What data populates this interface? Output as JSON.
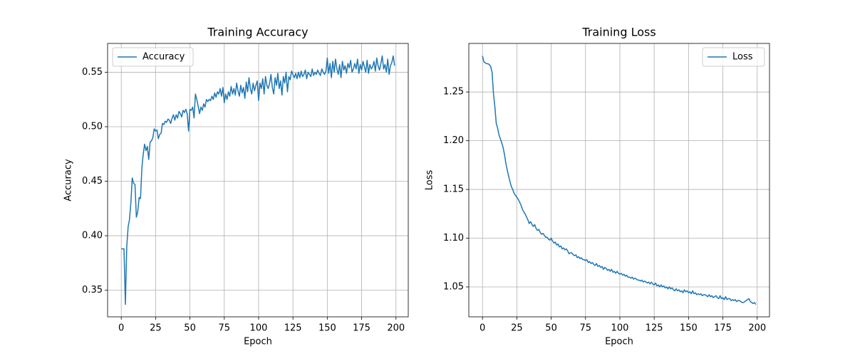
{
  "chart_data": [
    {
      "type": "line",
      "title": "Training Accuracy",
      "xlabel": "Epoch",
      "ylabel": "Accuracy",
      "x": [
        0,
        1,
        2,
        3,
        4,
        5,
        6,
        7,
        8,
        9,
        10,
        11,
        12,
        13,
        14,
        15,
        16,
        17,
        18,
        19,
        20,
        21,
        22,
        23,
        24,
        25,
        26,
        27,
        28,
        29,
        30,
        31,
        32,
        33,
        34,
        35,
        36,
        37,
        38,
        39,
        40,
        41,
        42,
        43,
        44,
        45,
        46,
        47,
        48,
        49,
        50,
        51,
        52,
        53,
        54,
        55,
        56,
        57,
        58,
        59,
        60,
        61,
        62,
        63,
        64,
        65,
        66,
        67,
        68,
        69,
        70,
        71,
        72,
        73,
        74,
        75,
        76,
        77,
        78,
        79,
        80,
        81,
        82,
        83,
        84,
        85,
        86,
        87,
        88,
        89,
        90,
        91,
        92,
        93,
        94,
        95,
        96,
        97,
        98,
        99,
        100,
        101,
        102,
        103,
        104,
        105,
        106,
        107,
        108,
        109,
        110,
        111,
        112,
        113,
        114,
        115,
        116,
        117,
        118,
        119,
        120,
        121,
        122,
        123,
        124,
        125,
        126,
        127,
        128,
        129,
        130,
        131,
        132,
        133,
        134,
        135,
        136,
        137,
        138,
        139,
        140,
        141,
        142,
        143,
        144,
        145,
        146,
        147,
        148,
        149,
        150,
        151,
        152,
        153,
        154,
        155,
        156,
        157,
        158,
        159,
        160,
        161,
        162,
        163,
        164,
        165,
        166,
        167,
        168,
        169,
        170,
        171,
        172,
        173,
        174,
        175,
        176,
        177,
        178,
        179,
        180,
        181,
        182,
        183,
        184,
        185,
        186,
        187,
        188,
        189,
        190,
        191,
        192,
        193,
        194,
        195,
        196,
        197,
        198,
        199
      ],
      "series": [
        {
          "name": "Accuracy",
          "color": "#1f77b4",
          "values": [
            0.388,
            0.388,
            0.388,
            0.337,
            0.39,
            0.408,
            0.415,
            0.43,
            0.453,
            0.448,
            0.447,
            0.417,
            0.422,
            0.435,
            0.434,
            0.462,
            0.475,
            0.484,
            0.478,
            0.482,
            0.47,
            0.486,
            0.487,
            0.49,
            0.498,
            0.496,
            0.497,
            0.489,
            0.493,
            0.494,
            0.503,
            0.502,
            0.505,
            0.504,
            0.507,
            0.506,
            0.503,
            0.508,
            0.511,
            0.506,
            0.511,
            0.508,
            0.514,
            0.512,
            0.509,
            0.515,
            0.513,
            0.516,
            0.512,
            0.496,
            0.516,
            0.515,
            0.518,
            0.508,
            0.53,
            0.525,
            0.519,
            0.512,
            0.518,
            0.515,
            0.521,
            0.518,
            0.525,
            0.523,
            0.525,
            0.524,
            0.528,
            0.525,
            0.531,
            0.527,
            0.532,
            0.53,
            0.535,
            0.528,
            0.536,
            0.522,
            0.53,
            0.525,
            0.532,
            0.528,
            0.537,
            0.53,
            0.535,
            0.529,
            0.54,
            0.533,
            0.528,
            0.538,
            0.531,
            0.536,
            0.526,
            0.541,
            0.532,
            0.545,
            0.535,
            0.53,
            0.54,
            0.533,
            0.538,
            0.542,
            0.524,
            0.54,
            0.535,
            0.544,
            0.53,
            0.546,
            0.538,
            0.535,
            0.54,
            0.548,
            0.536,
            0.53,
            0.545,
            0.538,
            0.549,
            0.535,
            0.542,
            0.529,
            0.546,
            0.54,
            0.55,
            0.532,
            0.546,
            0.543,
            0.551,
            0.548,
            0.545,
            0.549,
            0.544,
            0.55,
            0.545,
            0.551,
            0.546,
            0.548,
            0.552,
            0.544,
            0.55,
            0.548,
            0.546,
            0.553,
            0.547,
            0.55,
            0.548,
            0.552,
            0.549,
            0.547,
            0.553,
            0.55,
            0.548,
            0.551,
            0.563,
            0.549,
            0.558,
            0.545,
            0.56,
            0.55,
            0.562,
            0.553,
            0.548,
            0.557,
            0.545,
            0.56,
            0.552,
            0.556,
            0.549,
            0.558,
            0.554,
            0.561,
            0.55,
            0.553,
            0.558,
            0.553,
            0.562,
            0.549,
            0.557,
            0.552,
            0.56,
            0.555,
            0.55,
            0.561,
            0.549,
            0.557,
            0.553,
            0.555,
            0.56,
            0.551,
            0.563,
            0.556,
            0.552,
            0.558,
            0.565,
            0.553,
            0.557,
            0.55,
            0.562,
            0.548,
            0.556,
            0.559,
            0.565,
            0.556
          ]
        }
      ],
      "xlim": [
        -9.95,
        208.95
      ],
      "ylim": [
        0.3256,
        0.5764
      ],
      "xticks": [
        0,
        25,
        50,
        75,
        100,
        125,
        150,
        175,
        200
      ],
      "yticks": [
        0.35,
        {
          "value": 0.4,
          "label": "0.40"
        },
        0.45,
        {
          "value": 0.5,
          "label": "0.50"
        },
        0.55
      ],
      "grid": true,
      "legend": "upper left"
    },
    {
      "type": "line",
      "title": "Training Loss",
      "xlabel": "Epoch",
      "ylabel": "Loss",
      "x": [
        0,
        1,
        2,
        3,
        4,
        5,
        6,
        7,
        8,
        9,
        10,
        11,
        12,
        13,
        14,
        15,
        16,
        17,
        18,
        19,
        20,
        21,
        22,
        23,
        24,
        25,
        26,
        27,
        28,
        29,
        30,
        31,
        32,
        33,
        34,
        35,
        36,
        37,
        38,
        39,
        40,
        41,
        42,
        43,
        44,
        45,
        46,
        47,
        48,
        49,
        50,
        51,
        52,
        53,
        54,
        55,
        56,
        57,
        58,
        59,
        60,
        61,
        62,
        63,
        64,
        65,
        66,
        67,
        68,
        69,
        70,
        71,
        72,
        73,
        74,
        75,
        76,
        77,
        78,
        79,
        80,
        81,
        82,
        83,
        84,
        85,
        86,
        87,
        88,
        89,
        90,
        91,
        92,
        93,
        94,
        95,
        96,
        97,
        98,
        99,
        100,
        101,
        102,
        103,
        104,
        105,
        106,
        107,
        108,
        109,
        110,
        111,
        112,
        113,
        114,
        115,
        116,
        117,
        118,
        119,
        120,
        121,
        122,
        123,
        124,
        125,
        126,
        127,
        128,
        129,
        130,
        131,
        132,
        133,
        134,
        135,
        136,
        137,
        138,
        139,
        140,
        141,
        142,
        143,
        144,
        145,
        146,
        147,
        148,
        149,
        150,
        151,
        152,
        153,
        154,
        155,
        156,
        157,
        158,
        159,
        160,
        161,
        162,
        163,
        164,
        165,
        166,
        167,
        168,
        169,
        170,
        171,
        172,
        173,
        174,
        175,
        176,
        177,
        178,
        179,
        180,
        181,
        182,
        183,
        184,
        185,
        186,
        187,
        188,
        189,
        190,
        191,
        192,
        193,
        194,
        195,
        196,
        197,
        198,
        199
      ],
      "series": [
        {
          "name": "Loss",
          "color": "#1f77b4",
          "values": [
            1.287,
            1.281,
            1.28,
            1.279,
            1.279,
            1.278,
            1.276,
            1.27,
            1.248,
            1.235,
            1.218,
            1.213,
            1.206,
            1.202,
            1.198,
            1.193,
            1.186,
            1.177,
            1.17,
            1.164,
            1.158,
            1.153,
            1.15,
            1.146,
            1.144,
            1.142,
            1.14,
            1.137,
            1.134,
            1.13,
            1.127,
            1.125,
            1.122,
            1.119,
            1.115,
            1.117,
            1.114,
            1.112,
            1.114,
            1.11,
            1.108,
            1.109,
            1.106,
            1.104,
            1.105,
            1.103,
            1.101,
            1.101,
            1.099,
            1.098,
            1.1,
            1.097,
            1.095,
            1.096,
            1.093,
            1.094,
            1.091,
            1.092,
            1.089,
            1.09,
            1.088,
            1.089,
            1.087,
            1.084,
            1.085,
            1.085,
            1.083,
            1.082,
            1.083,
            1.08,
            1.081,
            1.079,
            1.08,
            1.078,
            1.078,
            1.077,
            1.078,
            1.075,
            1.076,
            1.074,
            1.075,
            1.073,
            1.072,
            1.074,
            1.071,
            1.072,
            1.07,
            1.071,
            1.068,
            1.07,
            1.069,
            1.067,
            1.068,
            1.066,
            1.068,
            1.065,
            1.066,
            1.064,
            1.066,
            1.064,
            1.063,
            1.064,
            1.062,
            1.063,
            1.061,
            1.062,
            1.06,
            1.06,
            1.059,
            1.06,
            1.058,
            1.059,
            1.058,
            1.057,
            1.057,
            1.056,
            1.057,
            1.055,
            1.056,
            1.055,
            1.054,
            1.055,
            1.053,
            1.055,
            1.053,
            1.052,
            1.054,
            1.051,
            1.052,
            1.05,
            1.052,
            1.05,
            1.051,
            1.049,
            1.05,
            1.048,
            1.05,
            1.048,
            1.049,
            1.047,
            1.046,
            1.048,
            1.046,
            1.047,
            1.045,
            1.046,
            1.044,
            1.047,
            1.045,
            1.046,
            1.044,
            1.045,
            1.043,
            1.046,
            1.043,
            1.044,
            1.042,
            1.043,
            1.042,
            1.043,
            1.041,
            1.042,
            1.042,
            1.041,
            1.04,
            1.042,
            1.04,
            1.041,
            1.039,
            1.04,
            1.041,
            1.039,
            1.038,
            1.041,
            1.038,
            1.039,
            1.037,
            1.04,
            1.037,
            1.038,
            1.038,
            1.036,
            1.037,
            1.036,
            1.037,
            1.035,
            1.036,
            1.036,
            1.035,
            1.034,
            1.034,
            1.035,
            1.036,
            1.037,
            1.038,
            1.035,
            1.034,
            1.033,
            1.034,
            1.032
          ]
        }
      ],
      "xlim": [
        -9.95,
        208.95
      ],
      "ylim": [
        1.0193,
        1.2998
      ],
      "xticks": [
        0,
        25,
        50,
        75,
        100,
        125,
        150,
        175,
        200
      ],
      "yticks": [
        1.05,
        {
          "value": 1.1,
          "label": "1.10"
        },
        1.15,
        {
          "value": 1.2,
          "label": "1.20"
        },
        1.25
      ],
      "grid": true,
      "legend": "upper right"
    }
  ]
}
